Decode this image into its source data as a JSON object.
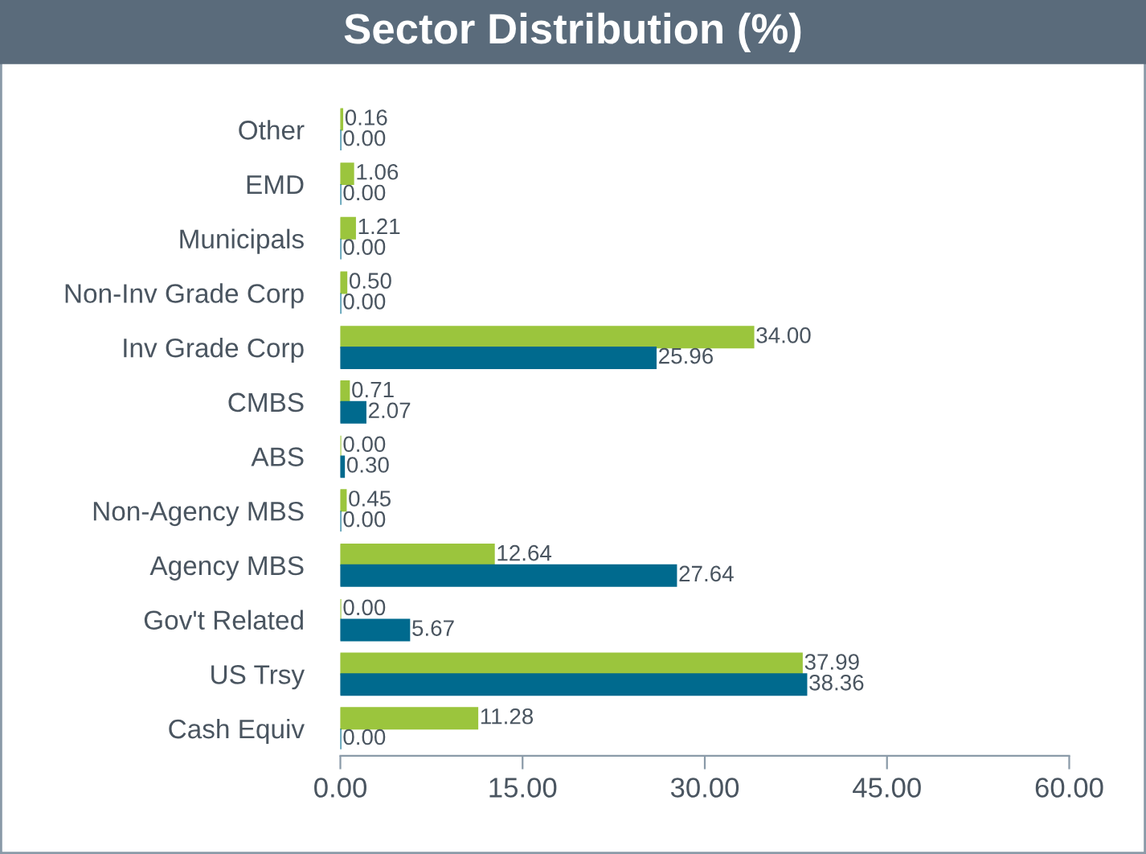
{
  "chart_data": {
    "type": "bar",
    "orientation": "horizontal",
    "title": "Sector Distribution (%)",
    "categories": [
      "Other",
      "EMD",
      "Municipals",
      "Non-Inv Grade Corp",
      "Inv Grade Corp",
      "CMBS",
      "ABS",
      "Non-Agency MBS",
      "Agency MBS",
      "Gov't Related",
      "US Trsy",
      "Cash Equiv"
    ],
    "series": [
      {
        "color": "#9bc53d",
        "values": [
          0.16,
          1.06,
          1.21,
          0.5,
          34.0,
          0.71,
          0.0,
          0.45,
          12.64,
          0.0,
          37.99,
          11.28
        ],
        "value_labels": [
          "0.16",
          "1.06",
          "1.21",
          "0.50",
          "34.00",
          "0.71",
          "0.00",
          "0.45",
          "12.64",
          "0.00",
          "37.99",
          "11.28"
        ]
      },
      {
        "color": "#006a8e",
        "values": [
          0.0,
          0.0,
          0.0,
          0.0,
          25.96,
          2.07,
          0.3,
          0.0,
          27.64,
          5.67,
          38.36,
          0.0
        ],
        "value_labels": [
          "0.00",
          "0.00",
          "0.00",
          "0.00",
          "25.96",
          "2.07",
          "0.30",
          "0.00",
          "27.64",
          "5.67",
          "38.36",
          "0.00"
        ]
      }
    ],
    "xlim": [
      0,
      60
    ],
    "xticks": [
      {
        "value": 0,
        "label": "0.00"
      },
      {
        "value": 15,
        "label": "15.00"
      },
      {
        "value": 30,
        "label": "30.00"
      },
      {
        "value": 45,
        "label": "45.00"
      },
      {
        "value": 60,
        "label": "60.00"
      }
    ],
    "grid": false
  }
}
